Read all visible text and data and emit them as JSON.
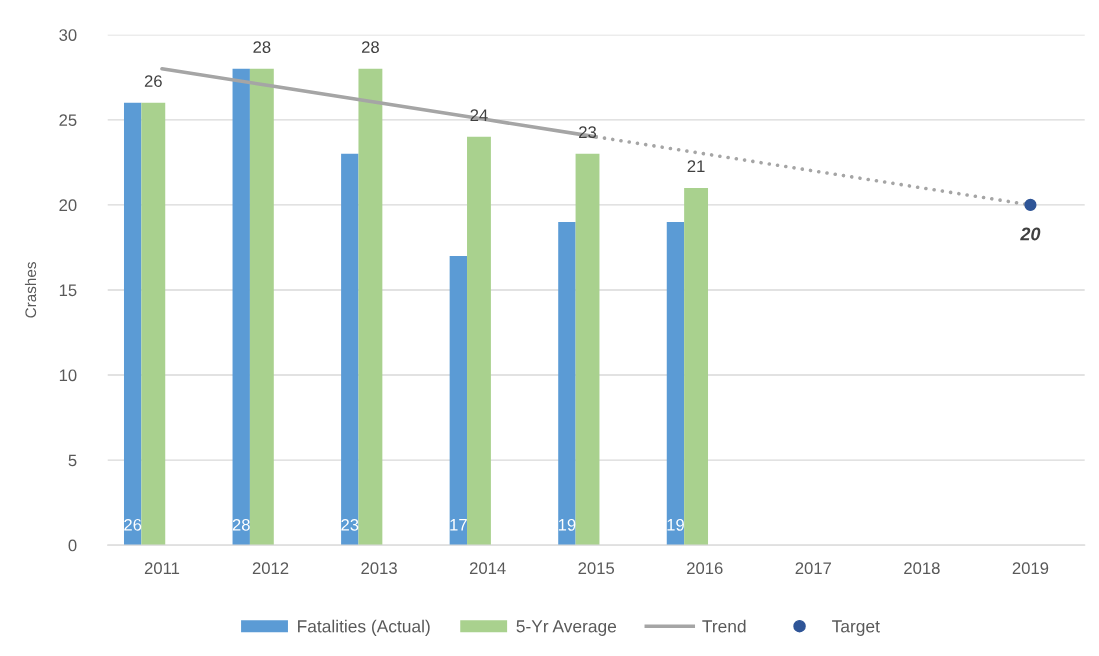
{
  "chart_data": {
    "type": "bar",
    "ylabel": "Crashes",
    "categories": [
      "2011",
      "2012",
      "2013",
      "2014",
      "2015",
      "2016",
      "2017",
      "2018",
      "2019"
    ],
    "series": [
      {
        "name": "Fatalities (Actual)",
        "color": "#5b9bd5",
        "values": [
          26,
          28,
          23,
          17,
          19,
          19,
          null,
          null,
          null
        ],
        "value_labels": [
          "26",
          "28",
          "23",
          "17",
          "19",
          "19",
          null,
          null,
          null
        ]
      },
      {
        "name": "5-Yr Average",
        "color": "#a9d18e",
        "values": [
          26,
          28,
          28,
          24,
          23,
          21,
          null,
          null,
          null
        ],
        "value_labels": [
          "26",
          "28",
          "28",
          "24",
          "23",
          "21",
          null,
          null,
          null
        ]
      },
      {
        "name": "Trend",
        "type": "line",
        "color": "#a5a5a5",
        "line_style": "solid",
        "values": [
          28,
          27,
          26,
          25,
          24,
          null,
          null,
          null,
          null
        ]
      },
      {
        "type": "line",
        "color": "#a5a5a5",
        "line_style": "dotted",
        "values": [
          null,
          null,
          null,
          null,
          24,
          23,
          22,
          21,
          20
        ]
      },
      {
        "name": "Target",
        "type": "scatter",
        "color": "#2f5597",
        "marker": "circle",
        "values": [
          null,
          null,
          null,
          null,
          null,
          null,
          null,
          null,
          20
        ],
        "value_labels": [
          null,
          null,
          null,
          null,
          null,
          null,
          null,
          null,
          "20"
        ]
      }
    ],
    "ylim": [
      0,
      30
    ],
    "yticks": [
      0,
      5,
      10,
      15,
      20,
      25,
      30
    ],
    "grid": "y",
    "legend": "bottom"
  }
}
